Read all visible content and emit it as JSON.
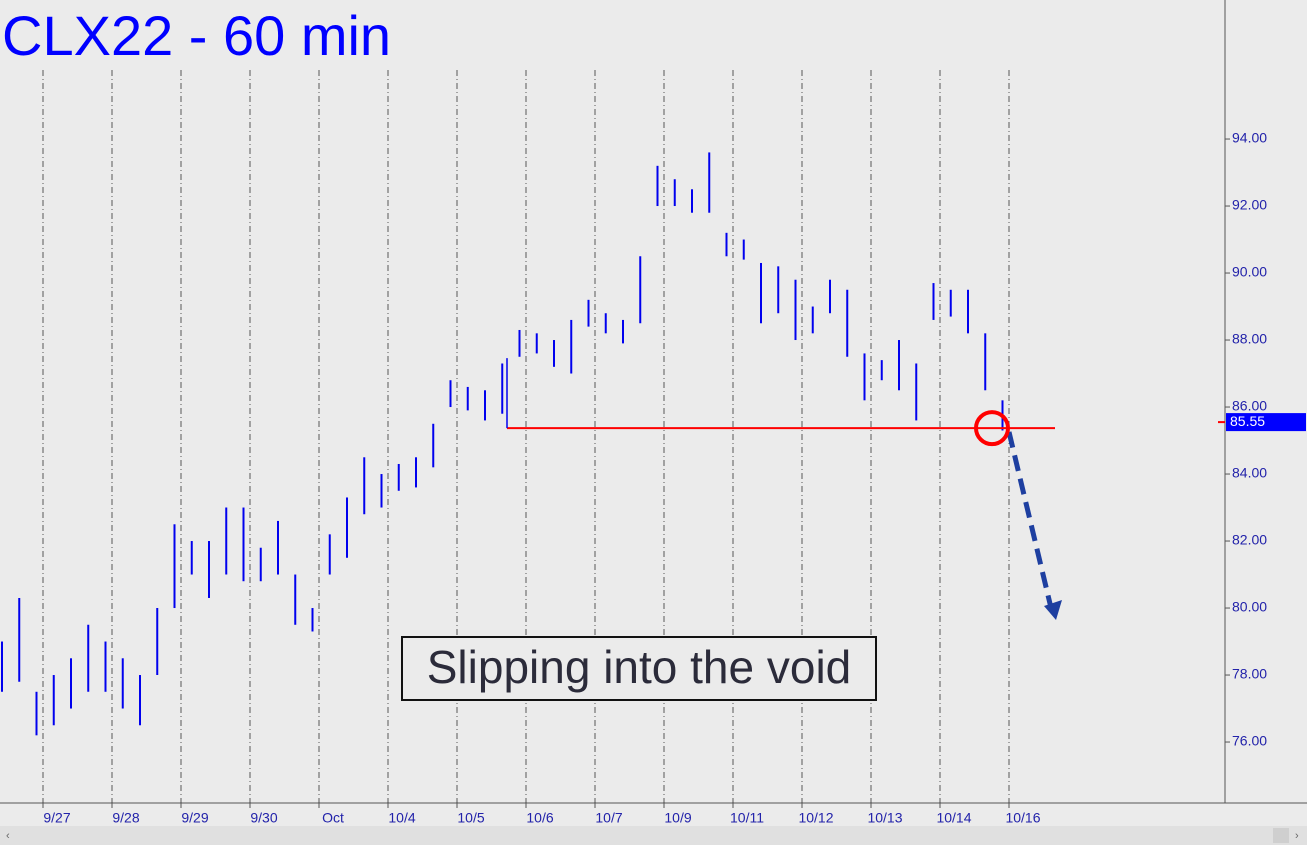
{
  "chart_data": {
    "type": "ohlc",
    "title": "CLX22 - 60 min",
    "annotation": "Slipping into the void",
    "categories": [
      "9/27",
      "9/28",
      "9/29",
      "9/30",
      "Oct",
      "10/4",
      "10/5",
      "10/6",
      "10/7",
      "10/9",
      "10/11",
      "10/12",
      "10/13",
      "10/14",
      "10/16"
    ],
    "series": [
      {
        "color": "#0000ee",
        "high": [
          79,
          80.3,
          77.5,
          78,
          78.5,
          79.5,
          79,
          78.5,
          78,
          80,
          82.5,
          82,
          82,
          83,
          83,
          81.8,
          82.6,
          81,
          80,
          82.2,
          83.3,
          84.5,
          84,
          84.3,
          84.5,
          85.5,
          86.8,
          86.6,
          86.5,
          87.3,
          88.3,
          88.2,
          88,
          88.6,
          89.2,
          88.8,
          88.6,
          90.5,
          93.2,
          92.8,
          92.5,
          93.6,
          91.2,
          91,
          90.3,
          90.2,
          89.8,
          89,
          89.8,
          89.5,
          87.6,
          87.4,
          88,
          87.3,
          89.7,
          89.5,
          89.5,
          88.2,
          86.2
        ],
        "low": [
          77.5,
          77.8,
          76.2,
          76.5,
          77,
          77.5,
          77.5,
          77,
          76.5,
          78,
          80,
          81,
          80.3,
          81,
          80.8,
          80.8,
          81,
          79.5,
          79.3,
          81,
          81.5,
          82.8,
          83,
          83.5,
          83.6,
          84.2,
          86,
          85.9,
          85.6,
          85.8,
          87.5,
          87.6,
          87.2,
          87,
          88.4,
          88.2,
          87.9,
          88.5,
          92,
          92,
          91.8,
          91.8,
          90.5,
          90.4,
          88.5,
          88.8,
          88,
          88.2,
          88.8,
          87.5,
          86.2,
          86.8,
          86.5,
          85.6,
          88.6,
          88.7,
          88.2,
          86.5,
          85.3
        ]
      }
    ],
    "level_line": {
      "value": 85.37,
      "color": "#ff0000"
    },
    "last_price": 85.55,
    "ylim": [
      74.18,
      98.15
    ],
    "yticks": [
      {
        "value": 76,
        "label": "76.00"
      },
      {
        "value": 78,
        "label": "78.00"
      },
      {
        "value": 80,
        "label": "80.00"
      },
      {
        "value": 82,
        "label": "82.00"
      },
      {
        "value": 84,
        "label": "84.00"
      },
      {
        "value": 86,
        "label": "86.00"
      },
      {
        "value": 88,
        "label": "88.00"
      },
      {
        "value": 90,
        "label": "90.00"
      },
      {
        "value": 92,
        "label": "92.00"
      },
      {
        "value": 94,
        "label": "94.00"
      }
    ]
  }
}
